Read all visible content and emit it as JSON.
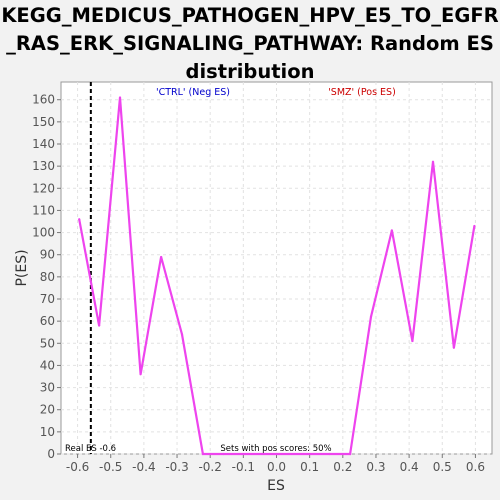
{
  "chart_data": {
    "type": "line",
    "title_lines": [
      "KEGG_MEDICUS_PATHOGEN_HPV_E5_TO_EGFR",
      "_RAS_ERK_SIGNALING_PATHWAY: Random ES",
      "distribution"
    ],
    "xlabel": "ES",
    "ylabel": "P(ES)",
    "xlim": [
      -0.65,
      0.65
    ],
    "ylim": [
      0,
      168
    ],
    "xticks": [
      "-0.6",
      "-0.5",
      "-0.4",
      "-0.3",
      "-0.2",
      "-0.1",
      "0.0",
      "0.1",
      "0.2",
      "0.3",
      "0.4",
      "0.5",
      "0.6"
    ],
    "yticks": [
      "0",
      "10",
      "20",
      "30",
      "40",
      "50",
      "60",
      "70",
      "80",
      "90",
      "100",
      "110",
      "120",
      "130",
      "140",
      "150",
      "160"
    ],
    "series": [
      {
        "color": "#ee44ee",
        "x": [
          -0.595,
          -0.535,
          -0.472,
          -0.41,
          -0.348,
          -0.285,
          -0.222,
          -0.16,
          0.0,
          0.16,
          0.222,
          0.285,
          0.348,
          0.41,
          0.472,
          0.535,
          0.597
        ],
        "y": [
          106,
          58,
          161,
          36,
          89,
          54,
          0,
          0,
          0,
          0,
          0,
          62,
          101,
          51,
          132,
          48,
          103
        ]
      }
    ],
    "real_es": -0.56,
    "grid": true,
    "annotations": {
      "neg_label": "'CTRL' (Neg ES)",
      "pos_label": "'SMZ' (Pos ES)",
      "real_es_label": "Real ES -0.6",
      "pos_scores_label": "Sets with pos scores: 50%"
    },
    "colors": {
      "neg_label": "#0000cc",
      "pos_label": "#cc0000",
      "line": "#ee44ee",
      "real_es_line": "#000000"
    }
  }
}
